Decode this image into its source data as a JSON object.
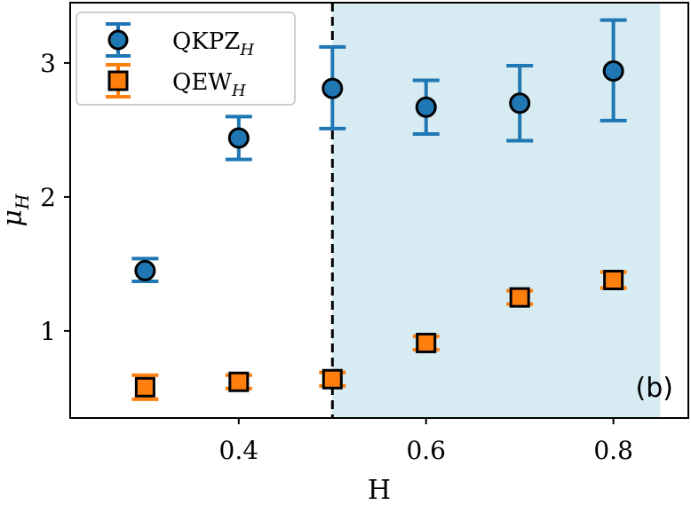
{
  "chart_data": {
    "type": "scatter",
    "title": "",
    "panel_label": "(b)",
    "xlabel": "H",
    "ylabel": "μH",
    "xlim": [
      0.22,
      0.88
    ],
    "ylim": [
      0.35,
      3.45
    ],
    "xticks": [
      0.4,
      0.6,
      0.8
    ],
    "xtick_labels": [
      "0.4",
      "0.6",
      "0.8"
    ],
    "yticks": [
      1,
      2,
      3
    ],
    "ytick_labels": [
      "1",
      "2",
      "3"
    ],
    "grid": false,
    "legend_position": "top-left",
    "threshold_line": {
      "x": 0.5,
      "style": "dashed",
      "color": "#000000"
    },
    "shaded_region": {
      "x_start": 0.5,
      "x_end": 0.85,
      "color": "#add8e6"
    },
    "series": [
      {
        "name": "QKPZ_H",
        "legend_base": "QKPZ",
        "legend_sub": "H",
        "marker": "circle",
        "color": "#1f77b4",
        "points": [
          {
            "x": 0.3,
            "y": 1.45,
            "err_low": 0.08,
            "err_high": 0.09
          },
          {
            "x": 0.4,
            "y": 2.44,
            "err_low": 0.16,
            "err_high": 0.16
          },
          {
            "x": 0.5,
            "y": 2.81,
            "err_low": 0.3,
            "err_high": 0.31
          },
          {
            "x": 0.6,
            "y": 2.67,
            "err_low": 0.2,
            "err_high": 0.2
          },
          {
            "x": 0.7,
            "y": 2.7,
            "err_low": 0.28,
            "err_high": 0.28
          },
          {
            "x": 0.8,
            "y": 2.94,
            "err_low": 0.37,
            "err_high": 0.38
          }
        ]
      },
      {
        "name": "QEW_H",
        "legend_base": "QEW",
        "legend_sub": "H",
        "marker": "square",
        "color": "#ff7f0e",
        "points": [
          {
            "x": 0.3,
            "y": 0.58,
            "err_low": 0.09,
            "err_high": 0.09
          },
          {
            "x": 0.4,
            "y": 0.62,
            "err_low": 0.05,
            "err_high": 0.05
          },
          {
            "x": 0.5,
            "y": 0.64,
            "err_low": 0.05,
            "err_high": 0.05
          },
          {
            "x": 0.6,
            "y": 0.91,
            "err_low": 0.05,
            "err_high": 0.05
          },
          {
            "x": 0.7,
            "y": 1.25,
            "err_low": 0.05,
            "err_high": 0.05
          },
          {
            "x": 0.8,
            "y": 1.38,
            "err_low": 0.06,
            "err_high": 0.06
          }
        ]
      }
    ]
  }
}
